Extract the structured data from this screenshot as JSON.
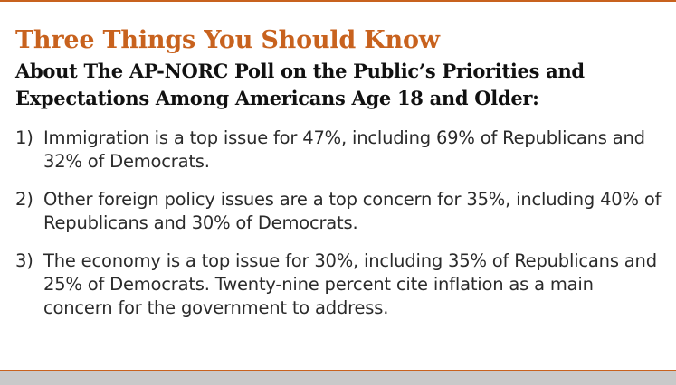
{
  "heading": {
    "title": "Three Things You Should Know",
    "subtitle": "About The AP-NORC Poll on the Public’s Priorities and Expectations Among Americans Age 18 and Older:"
  },
  "items": [
    {
      "number": "1)",
      "text": "Immigration is a top issue for 47%, including 69% of Republicans and 32% of Democrats."
    },
    {
      "number": "2)",
      "text": "Other foreign policy issues are a top concern for 35%, including 40% of Republicans and 30% of Democrats."
    },
    {
      "number": "3)",
      "text": "The economy is a top issue for 30%, including 35% of Republicans and 25% of Democrats. Twenty-nine percent cite inflation as a main concern for the government to address."
    }
  ],
  "colors": {
    "accent": "#c8621e",
    "title": "#c8621e",
    "subtitle": "#111111",
    "body_text": "#2b2b2b",
    "footer_bar": "#c9c9c9"
  }
}
